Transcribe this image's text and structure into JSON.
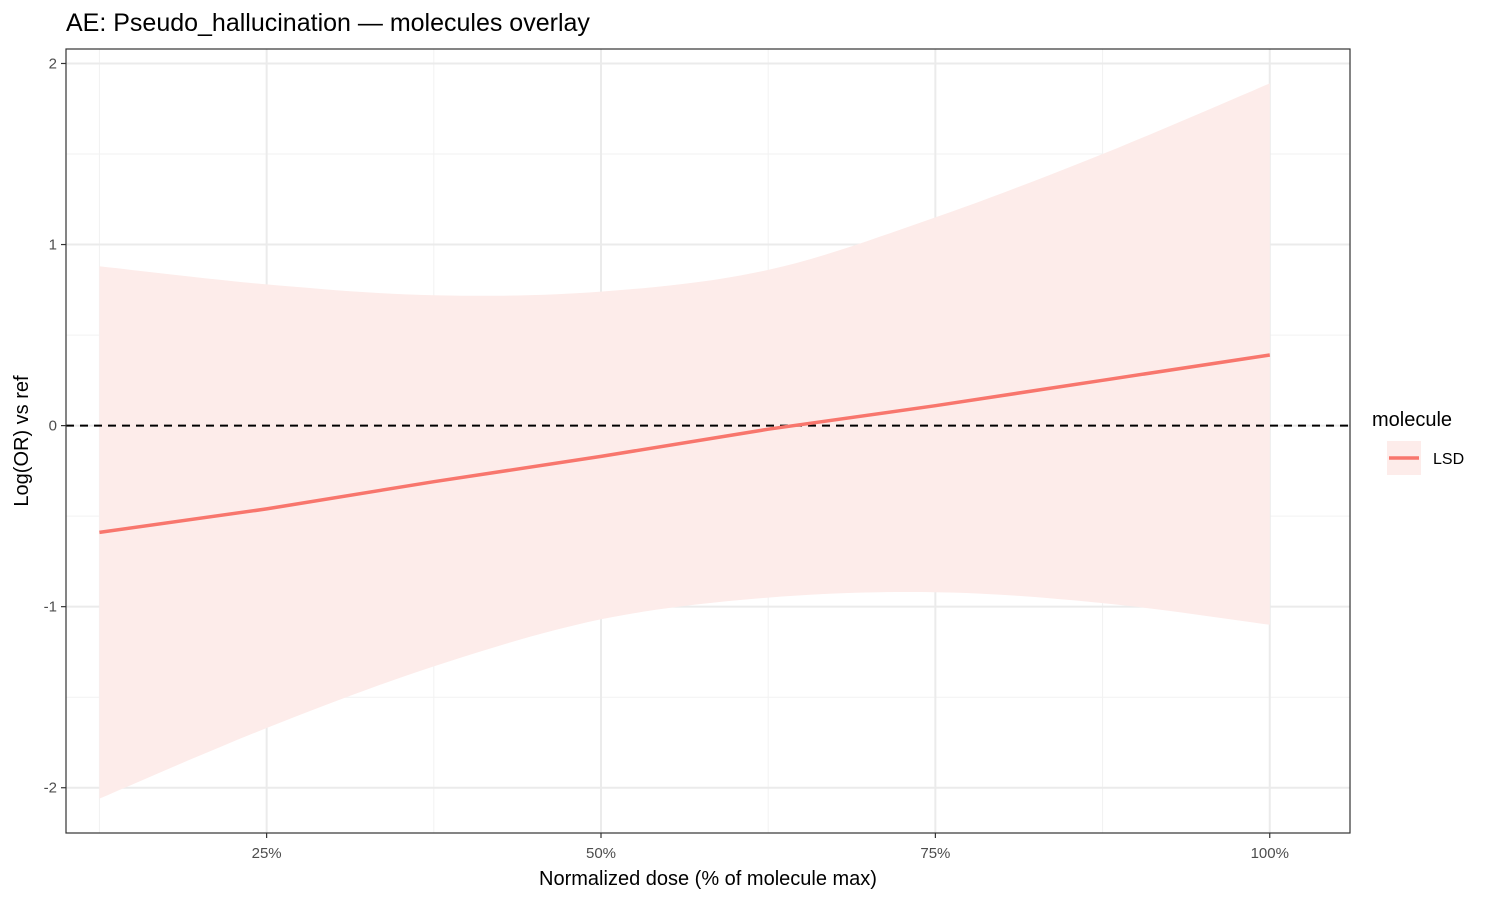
{
  "chart_data": {
    "type": "line",
    "title": "AE: Pseudo_hallucination — molecules overlay",
    "xlabel": "Normalized dose (% of molecule max)",
    "ylabel": "Log(OR) vs ref",
    "xlim": [
      0.1,
      1.06
    ],
    "ylim": [
      -2.25,
      2.08
    ],
    "x_ticks": [
      0.25,
      0.5,
      0.75,
      1.0
    ],
    "x_tick_labels": [
      "25%",
      "50%",
      "75%",
      "100%"
    ],
    "y_ticks": [
      -2,
      -1,
      0,
      1,
      2
    ],
    "y_tick_labels": [
      "-2",
      "-1",
      "0",
      "1",
      "2"
    ],
    "grid": true,
    "reference_line": {
      "y": 0,
      "style": "dashed"
    },
    "legend": {
      "title": "molecule",
      "position": "right"
    },
    "series": [
      {
        "name": "LSD",
        "color": "#f8766d",
        "ribbon_color": "#fdecea",
        "x": [
          0.125,
          0.25,
          0.375,
          0.5,
          0.625,
          0.75,
          0.875,
          1.0
        ],
        "y": [
          -0.59,
          -0.46,
          -0.31,
          -0.17,
          -0.02,
          0.11,
          0.25,
          0.39
        ],
        "lower": [
          -2.06,
          -1.67,
          -1.33,
          -1.07,
          -0.95,
          -0.92,
          -0.98,
          -1.1
        ],
        "upper": [
          0.88,
          0.78,
          0.72,
          0.74,
          0.86,
          1.15,
          1.5,
          1.89
        ]
      }
    ]
  }
}
